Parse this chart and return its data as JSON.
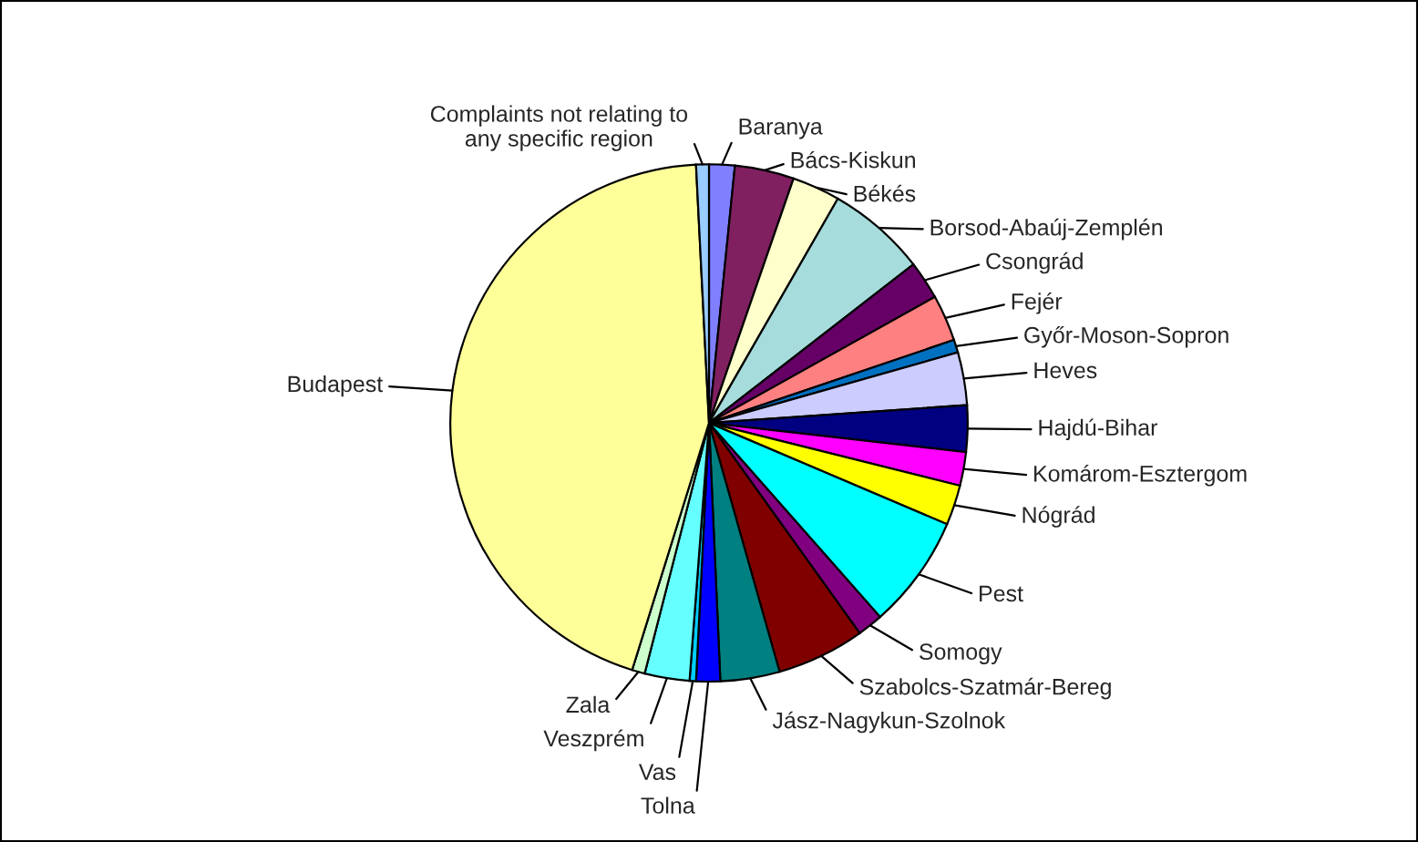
{
  "chart_data": {
    "type": "pie",
    "categories": [
      "Baranya",
      "Bács-Kiskun",
      "Békés",
      "Borsod-Abaúj-Zemplén",
      "Csongrád",
      "Fejér",
      "Győr-Moson-Sopron",
      "Heves",
      "Hajdú-Bihar",
      "Komárom-Esztergom",
      "Nógrád",
      "Pest",
      "Somogy",
      "Szabolcs-Szatmár-Bereg",
      "Jász-Nagykun-Szolnok",
      "Tolna",
      "Vas",
      "Veszprém",
      "Zala",
      "Budapest",
      "Complaints not relating to\nany specific region"
    ],
    "values": [
      1.6,
      3.7,
      3.0,
      6.2,
      2.4,
      2.9,
      0.8,
      3.3,
      2.9,
      2.1,
      2.5,
      7.1,
      1.6,
      5.5,
      3.7,
      1.5,
      0.4,
      2.8,
      0.8,
      44.4,
      0.8
    ],
    "colors": [
      "#8080ff",
      "#802060",
      "#ffffcc",
      "#a6dcdc",
      "#660066",
      "#ff8080",
      "#0070c0",
      "#ccccff",
      "#000080",
      "#ff00ff",
      "#ffff00",
      "#00ffff",
      "#800080",
      "#800000",
      "#008080",
      "#0000ff",
      "#00ccff",
      "#66ffff",
      "#ccffcc",
      "#ffff99",
      "#99ccff"
    ],
    "legend": null
  }
}
